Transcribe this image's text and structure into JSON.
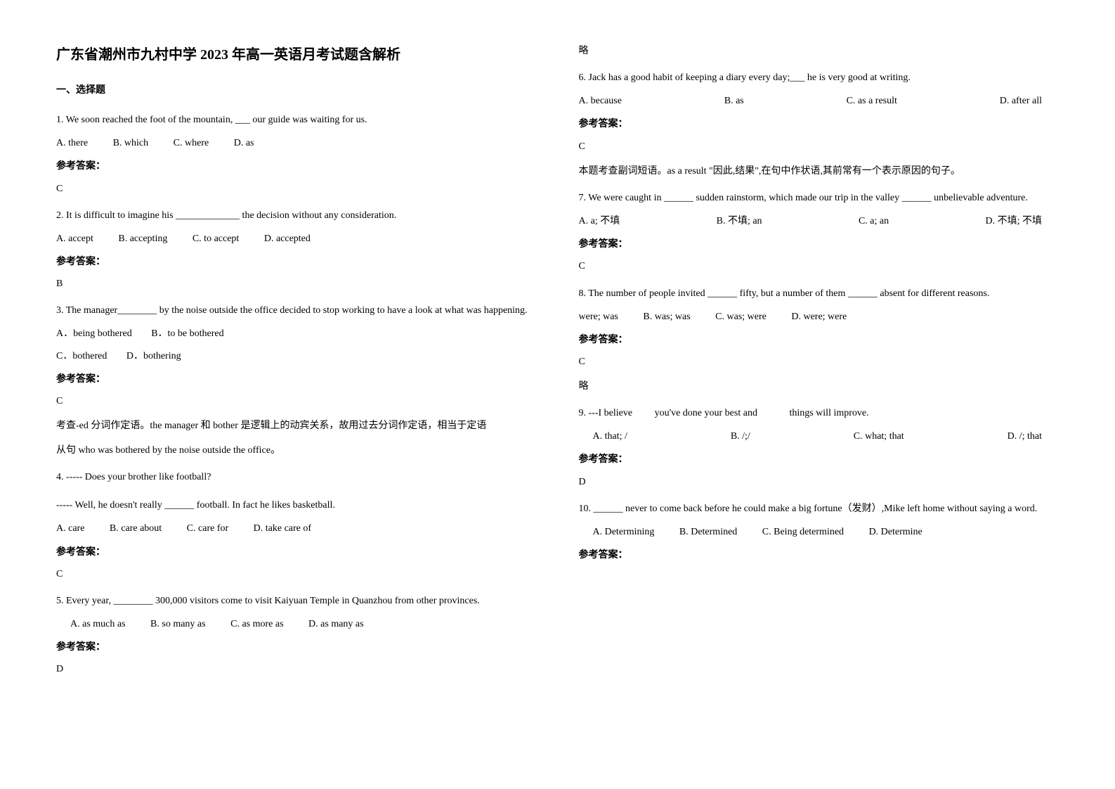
{
  "doc_title": "广东省潮州市九村中学 2023 年高一英语月考试题含解析",
  "section1_heading": "一、选择题",
  "answer_label": "参考答案：",
  "skip_text": "略",
  "q1": {
    "text": "1. We soon reached the foot of the mountain, ___ our guide was waiting for us.",
    "a": "A. there",
    "b": "B. which",
    "c": "C. where",
    "d": "D. as",
    "ans": "C"
  },
  "q2": {
    "text": "2. It is difficult to imagine his _____________ the decision without any consideration.",
    "a": "A. accept",
    "b": "B. accepting",
    "c": "C. to accept",
    "d": "D. accepted",
    "ans": "B"
  },
  "q3": {
    "text": "3. The manager________ by the noise outside the office decided to stop working to have a look at what was happening.",
    "a": "A．being bothered",
    "b": "B．to be bothered",
    "c": "C．bothered",
    "d": "D．bothering",
    "ans": "C",
    "expl1": "考查-ed 分词作定语。the manager 和 bother 是逻辑上的动宾关系，故用过去分词作定语，相当于定语",
    "expl2": "从句 who was bothered by the noise outside the office。"
  },
  "q4": {
    "text1": "4. ----- Does your brother like football?",
    "text2": "----- Well, he doesn't really ______ football. In fact he likes basketball.",
    "a": "A. care",
    "b": "B. care about",
    "c": "C. care for",
    "d": "D. take care of",
    "ans": "C"
  },
  "q5": {
    "text": "5. Every year, ________ 300,000 visitors come to visit Kaiyuan Temple in Quanzhou from other provinces.",
    "a": "A. as much as",
    "b": "B. so many as",
    "c": "C. as more as",
    "d": "D. as many as",
    "ans": "D"
  },
  "q6": {
    "text": "6. Jack has a good habit of keeping a diary every day;___ he is very good at writing.",
    "a": "A. because",
    "b": "B. as",
    "c": "C. as a result",
    "d": "D. after all",
    "ans": "C",
    "expl": "本题考查副词短语。as a result \"因此,结果\",在句中作状语,其前常有一个表示原因的句子。"
  },
  "q7": {
    "text": "7. We were caught in ______ sudden rainstorm, which made our trip in the valley ______ unbelievable adventure.",
    "a": "A. a; 不填",
    "b": "B. 不填; an",
    "c": "C. a; an",
    "d": "D. 不填; 不填",
    "ans": "C"
  },
  "q8": {
    "text": "8. The number of people invited ______ fifty, but a number of them ______ absent for different reasons.",
    "a": "were; was",
    "b": "B. was; was",
    "c": "C. was; were",
    "d": "D. were; were",
    "ans": "C"
  },
  "q9": {
    "text": "9. ---I believe         you've done your best and             things will improve.",
    "a": "A. that; /",
    "b": "B. /;/",
    "c": "C. what; that",
    "d": "D. /; that",
    "ans": "D"
  },
  "q10": {
    "text": "10. ______ never to come back before he could make a big fortune（发财）,Mike left home without saying a word.",
    "a": "A. Determining",
    "b": "B. Determined",
    "c": "C. Being determined",
    "d": "D. Determine",
    "ans": ""
  }
}
